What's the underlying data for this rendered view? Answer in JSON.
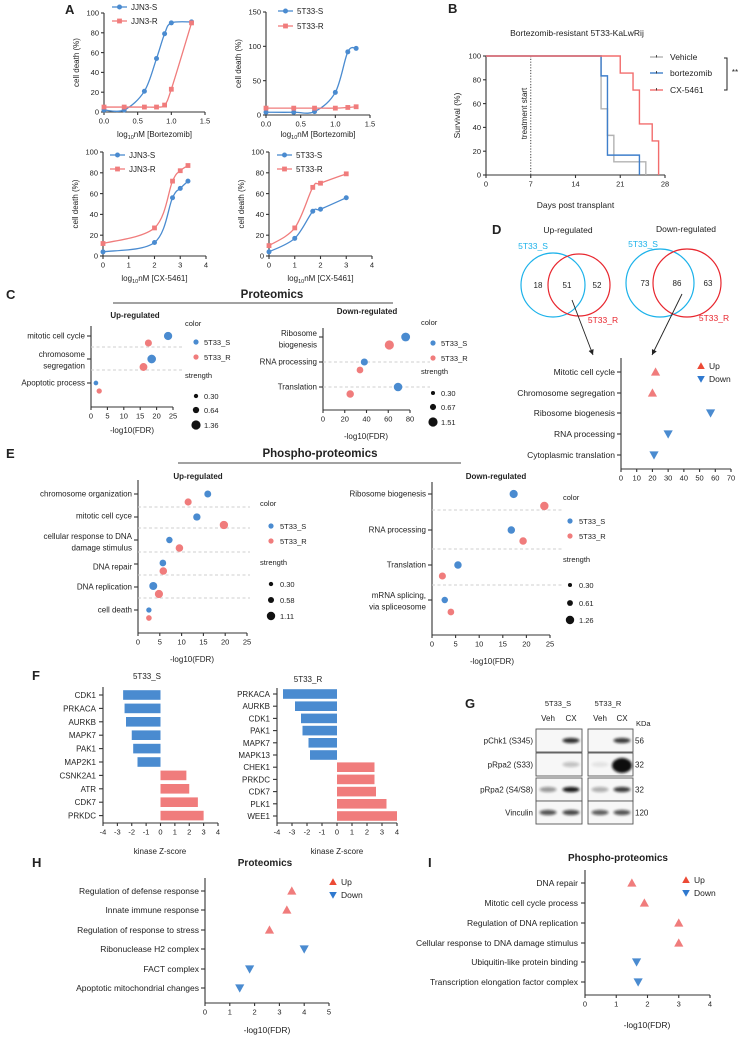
{
  "figure": {
    "panel_letters": [
      "A",
      "B",
      "C",
      "D",
      "E",
      "F",
      "G",
      "H",
      "I"
    ],
    "section_titles": {
      "C": "Proteomics",
      "E": "Phospho-proteomics"
    }
  },
  "chart_data": [
    {
      "id": "A1",
      "panel": "A",
      "type": "line",
      "xlabel": {
        "pre": "log",
        "sub": "10",
        "post": "nM [Bortezomib]"
      },
      "ylabel": "cell death (%)",
      "xlim": [
        0,
        1.5
      ],
      "ylim": [
        0,
        100
      ],
      "xticks": [
        "0.0",
        "0.5",
        "1.0",
        "1.5"
      ],
      "yticks": [
        "0",
        "20",
        "40",
        "60",
        "80",
        "100"
      ],
      "legend": "top-left",
      "series": [
        {
          "name": "JJN3-S",
          "color": "#4a8bd0",
          "marker": "circle",
          "x": [
            0,
            0.3,
            0.6,
            0.78,
            0.9,
            1.0,
            1.3
          ],
          "y": [
            2,
            2,
            21,
            54,
            79,
            90,
            91
          ]
        },
        {
          "name": "JJN3-R",
          "color": "#f07c7c",
          "marker": "square",
          "x": [
            0,
            0.3,
            0.6,
            0.78,
            0.9,
            1.0,
            1.3
          ],
          "y": [
            5,
            5,
            5,
            5,
            7,
            23,
            90
          ]
        }
      ]
    },
    {
      "id": "A2",
      "panel": "A",
      "type": "line",
      "xlabel": {
        "pre": "log",
        "sub": "10",
        "post": "nM [Bortezomib]"
      },
      "ylabel": "cell death (%)",
      "xlim": [
        0,
        1.5
      ],
      "ylim": [
        0,
        150
      ],
      "xticks": [
        "0.0",
        "0.5",
        "1.0",
        "1.5"
      ],
      "yticks": [
        "0",
        "50",
        "100",
        "150"
      ],
      "legend": "top-left",
      "series": [
        {
          "name": "5T33-S",
          "color": "#4a8bd0",
          "marker": "circle",
          "x": [
            0,
            0.4,
            0.7,
            1.0,
            1.18,
            1.3
          ],
          "y": [
            4,
            4,
            5,
            33,
            92,
            97
          ]
        },
        {
          "name": "5T33-R",
          "color": "#f07c7c",
          "marker": "square",
          "x": [
            0,
            0.4,
            0.7,
            1.0,
            1.18,
            1.3
          ],
          "y": [
            10,
            10,
            10,
            10,
            11,
            12
          ]
        }
      ]
    },
    {
      "id": "A3",
      "panel": "A",
      "type": "line",
      "xlabel": {
        "pre": "log",
        "sub": "10",
        "post": "nM [CX-5461]"
      },
      "ylabel": "cell death (%)",
      "xlim": [
        0,
        4
      ],
      "ylim": [
        0,
        100
      ],
      "xticks": [
        "0",
        "1",
        "2",
        "3",
        "4"
      ],
      "yticks": [
        "0",
        "20",
        "40",
        "60",
        "80",
        "100"
      ],
      "legend": "top-left",
      "series": [
        {
          "name": "JJN3-S",
          "color": "#4a8bd0",
          "marker": "circle",
          "x": [
            0,
            2,
            2.7,
            3,
            3.3
          ],
          "y": [
            4,
            13,
            56,
            65,
            72
          ]
        },
        {
          "name": "JJN3-R",
          "color": "#f07c7c",
          "marker": "square",
          "x": [
            0,
            2,
            2.7,
            3,
            3.3
          ],
          "y": [
            12,
            27,
            72,
            82,
            87
          ]
        }
      ]
    },
    {
      "id": "A4",
      "panel": "A",
      "type": "line",
      "xlabel": {
        "pre": "log",
        "sub": "10",
        "post": "nM [CX-5461]"
      },
      "ylabel": "cell death (%)",
      "xlim": [
        0,
        4
      ],
      "ylim": [
        0,
        100
      ],
      "xticks": [
        "0",
        "1",
        "2",
        "3",
        "4"
      ],
      "yticks": [
        "0",
        "20",
        "40",
        "60",
        "80",
        "100"
      ],
      "legend": "top-left",
      "series": [
        {
          "name": "5T33-S",
          "color": "#4a8bd0",
          "marker": "circle",
          "x": [
            0,
            1,
            1.7,
            2,
            3
          ],
          "y": [
            4,
            17,
            43,
            45,
            56
          ]
        },
        {
          "name": "5T33-R",
          "color": "#f07c7c",
          "marker": "square",
          "x": [
            0,
            1,
            1.7,
            2,
            3
          ],
          "y": [
            10,
            27,
            66,
            70,
            79
          ]
        }
      ]
    },
    {
      "id": "B",
      "panel": "B",
      "type": "line",
      "title": "Bortezomib-resistant 5T33-KaLwRij",
      "xlabel": "Days post transplant",
      "ylabel": "Survival (%)",
      "xlim": [
        0,
        28
      ],
      "ylim": [
        0,
        100
      ],
      "xticks": [
        "0",
        "7",
        "14",
        "21",
        "28"
      ],
      "yticks": [
        "0",
        "20",
        "40",
        "60",
        "80",
        "100"
      ],
      "annotation": "treatment start",
      "annotation_x": 7,
      "significance": "**",
      "legend": "top-right",
      "series": [
        {
          "name": "Vehicle",
          "color": "#b3b3b3",
          "steps": [
            [
              0,
              100
            ],
            [
              18,
              55.6
            ],
            [
              19,
              33.3
            ],
            [
              20,
              11.1
            ],
            [
              25,
              0
            ]
          ]
        },
        {
          "name": "bortezomib",
          "color": "#3f7fcb",
          "steps": [
            [
              0,
              100
            ],
            [
              18,
              83.3
            ],
            [
              19,
              16.7
            ],
            [
              24,
              0
            ]
          ]
        },
        {
          "name": "CX-5461",
          "color": "#f26d6d",
          "steps": [
            [
              0,
              100
            ],
            [
              21,
              85.7
            ],
            [
              23,
              71.4
            ],
            [
              24,
              42.9
            ],
            [
              26,
              28.6
            ],
            [
              27,
              0
            ]
          ]
        }
      ]
    },
    {
      "id": "C-up",
      "panel": "C",
      "type": "scatter",
      "title": "Up-regulated",
      "xlabel": "-log10(FDR)",
      "xlim": [
        0,
        25
      ],
      "xticks": [
        "0",
        "5",
        "10",
        "15",
        "20",
        "25"
      ],
      "categories": [
        [
          "mitotic cell cycle"
        ],
        [
          "chromosome",
          "segregation"
        ],
        [
          "Apoptotic process"
        ]
      ],
      "series": [
        {
          "name": "5T33_S",
          "color": "#4a8bd0",
          "values": [
            23.5,
            18.5,
            1.5
          ],
          "strength": [
            1.1,
            1.2,
            0.35
          ]
        },
        {
          "name": "5T33_R",
          "color": "#f07c7c",
          "values": [
            17.5,
            16,
            2.5
          ],
          "strength": [
            0.8,
            1.0,
            0.45
          ]
        }
      ],
      "legend_titles": [
        "color",
        "strength"
      ],
      "strength_legend": [
        "0.30",
        "0.64",
        "1.36"
      ]
    },
    {
      "id": "C-down",
      "panel": "C",
      "type": "scatter",
      "title": "Down-regulated",
      "xlabel": "-log10(FDR)",
      "xlim": [
        0,
        80
      ],
      "xticks": [
        "0",
        "20",
        "40",
        "60",
        "80"
      ],
      "categories": [
        [
          "Ribosome",
          "biogenesis"
        ],
        [
          "RNA processing"
        ],
        [
          "Translation"
        ]
      ],
      "series": [
        {
          "name": "5T33_S",
          "color": "#4a8bd0",
          "values": [
            76,
            38,
            69
          ],
          "strength": [
            1.4,
            0.9,
            1.3
          ]
        },
        {
          "name": "5T33_R",
          "color": "#f07c7c",
          "values": [
            61,
            34,
            25
          ],
          "strength": [
            1.5,
            0.8,
            1.0
          ]
        }
      ],
      "legend_titles": [
        "color",
        "strength"
      ],
      "strength_legend": [
        "0.30",
        "0.67",
        "1.51"
      ]
    },
    {
      "id": "D-venn",
      "panel": "D",
      "type": "venn",
      "diagrams": [
        {
          "title": "Up-regulated",
          "set_labels": [
            "5T33_S",
            "5T33_R"
          ],
          "counts": [
            "18",
            "51",
            "52"
          ]
        },
        {
          "title": "Down-regulated",
          "set_labels": [
            "5T33_S",
            "5T33_R"
          ],
          "counts": [
            "73",
            "86",
            "63"
          ]
        }
      ],
      "colors": {
        "5T33_S": "#1cb2ea",
        "5T33_R": "#e8262e"
      }
    },
    {
      "id": "D-dot",
      "panel": "D",
      "type": "scatter",
      "xlim": [
        0,
        70
      ],
      "xticks": [
        "0",
        "10",
        "20",
        "30",
        "40",
        "50",
        "60",
        "70"
      ],
      "categories": [
        "Mitotic cell cycle",
        "Chromosome segregation",
        "Ribosome biogenesis",
        "RNA processing",
        "Cytoplasmic translation"
      ],
      "values": [
        22,
        20,
        57,
        30,
        21
      ],
      "direction": [
        "Up",
        "Up",
        "Down",
        "Down",
        "Down"
      ],
      "legend": [
        "Up",
        "Down"
      ],
      "colors": {
        "Up": "#f07c7c",
        "Down": "#4a8bd0"
      }
    },
    {
      "id": "E-up",
      "panel": "E",
      "type": "scatter",
      "title": "Up-regulated",
      "xlabel": "-log10(FDR)",
      "xlim": [
        0,
        25
      ],
      "xticks": [
        "0",
        "5",
        "10",
        "15",
        "20",
        "25"
      ],
      "categories": [
        [
          "chromosome organization"
        ],
        [
          "mitotic cell cyce"
        ],
        [
          "cellular response to DNA",
          "damage stimulus"
        ],
        [
          "DNA repair"
        ],
        [
          "DNA replication"
        ],
        [
          "cell death"
        ]
      ],
      "series": [
        {
          "name": "5T33_S",
          "color": "#4a8bd0",
          "values": [
            16,
            13.5,
            7.2,
            5.7,
            3.5,
            2.5
          ],
          "strength": [
            0.75,
            0.85,
            0.65,
            0.7,
            1.0,
            0.45
          ]
        },
        {
          "name": "5T33_R",
          "color": "#f07c7c",
          "values": [
            11.5,
            19.7,
            9.5,
            5.8,
            4.8,
            2.5
          ],
          "strength": [
            0.8,
            1.1,
            0.9,
            0.9,
            1.05,
            0.5
          ]
        }
      ],
      "legend_titles": [
        "color",
        "strength"
      ],
      "strength_legend": [
        "0.30",
        "0.58",
        "1.11"
      ]
    },
    {
      "id": "E-down",
      "panel": "E",
      "type": "scatter",
      "title": "Down-regulated",
      "xlabel": "-log10(FDR)",
      "xlim": [
        0,
        25
      ],
      "xticks": [
        "0",
        "5",
        "10",
        "15",
        "20",
        "25"
      ],
      "categories": [
        [
          "Ribosome biogenesis"
        ],
        [
          "RNA processing"
        ],
        [
          "Translation"
        ],
        [
          "mRNA splicing,",
          "via spliceosome"
        ]
      ],
      "series": [
        {
          "name": "5T33_S",
          "color": "#4a8bd0",
          "values": [
            17.3,
            16.8,
            5.5,
            2.7
          ],
          "strength": [
            1.2,
            1.0,
            1.0,
            0.75
          ]
        },
        {
          "name": "5T33_R",
          "color": "#f07c7c",
          "values": [
            23.8,
            19.3,
            2.2,
            4.0
          ],
          "strength": [
            1.26,
            1.0,
            0.9,
            0.8
          ]
        }
      ],
      "legend_titles": [
        "color",
        "strength"
      ],
      "strength_legend": [
        "0.30",
        "0.61",
        "1.26"
      ]
    },
    {
      "id": "F-S",
      "panel": "F",
      "type": "bar",
      "title": "5T33_S",
      "xlabel": "kinase Z-score",
      "xlim": [
        -4,
        4
      ],
      "xticks": [
        "-4",
        "-3",
        "-2",
        "-1",
        "0",
        "1",
        "2",
        "3",
        "4"
      ],
      "categories": [
        "CDK1",
        "PRKACA",
        "AURKB",
        "MAPK7",
        "PAK1",
        "MAP2K1",
        "CSNK2A1",
        "ATR",
        "CDK7",
        "PRKDC"
      ],
      "values": [
        -2.6,
        -2.5,
        -2.4,
        -2.0,
        -1.9,
        -1.6,
        1.8,
        2.0,
        2.6,
        3.0
      ],
      "colors": {
        "negative": "#4a8bd0",
        "positive": "#f07c7c"
      }
    },
    {
      "id": "F-R",
      "panel": "F",
      "type": "bar",
      "title": "5T33_R",
      "xlabel": "kinase Z-score",
      "xlim": [
        -4,
        4
      ],
      "xticks": [
        "-4",
        "-3",
        "-2",
        "-1",
        "0",
        "1",
        "2",
        "3",
        "4"
      ],
      "categories": [
        "PRKACA",
        "AURKB",
        "CDK1",
        "PAK1",
        "MAPK7",
        "MAPK13",
        "CHEK1",
        "PRKDC",
        "CDK7",
        "PLK1",
        "WEE1"
      ],
      "values": [
        -3.6,
        -2.8,
        -2.4,
        -2.3,
        -1.9,
        -1.8,
        2.5,
        2.5,
        2.6,
        3.3,
        4.0
      ],
      "colors": {
        "negative": "#4a8bd0",
        "positive": "#f07c7c"
      }
    },
    {
      "id": "H",
      "panel": "H",
      "type": "scatter",
      "title": "Proteomics",
      "xlabel": "-log10(FDR)",
      "xlim": [
        0,
        5
      ],
      "xticks": [
        "0",
        "1",
        "2",
        "3",
        "4",
        "5"
      ],
      "categories": [
        "Regulation of defense response",
        "Innate immune response",
        "Regulation of response to stress",
        "Ribonuclease H2 complex",
        "FACT complex",
        "Apoptotic mitochondrial changes"
      ],
      "values": [
        3.5,
        3.3,
        2.6,
        4.0,
        1.8,
        1.4
      ],
      "direction": [
        "Up",
        "Up",
        "Up",
        "Down",
        "Down",
        "Down"
      ],
      "legend": [
        "Up",
        "Down"
      ],
      "colors": {
        "Up": "#f07c7c",
        "Down": "#4a8bd0"
      }
    },
    {
      "id": "I",
      "panel": "I",
      "type": "scatter",
      "title": "Phospho-proteomics",
      "xlabel": "-log10(FDR)",
      "xlim": [
        0,
        4
      ],
      "xticks": [
        "0",
        "1",
        "2",
        "3",
        "4"
      ],
      "categories": [
        "DNA repair",
        "Mitotic cell cycle process",
        "Regulation of DNA replication",
        "Cellular response to DNA damage stimulus",
        "Ubiquitin-like protein binding",
        "Transcription elongation factor complex"
      ],
      "values": [
        1.5,
        1.9,
        3.0,
        3.0,
        1.65,
        1.7
      ],
      "direction": [
        "Up",
        "Up",
        "Up",
        "Up",
        "Down",
        "Down"
      ],
      "legend": [
        "Up",
        "Down"
      ],
      "colors": {
        "Up": "#f07c7c",
        "Down": "#4a8bd0"
      }
    }
  ],
  "western_blot": {
    "groups": [
      "5T33_S",
      "5T33_R"
    ],
    "lanes": [
      "Veh",
      "CX",
      "Veh",
      "CX"
    ],
    "unit": "KDa",
    "rows": [
      {
        "label": "pChk1 (S345)",
        "kda": "56",
        "intensity": [
          0,
          0.85,
          0,
          0.8
        ]
      },
      {
        "label": "pRpa2 (S33)",
        "kda": "32",
        "intensity": [
          0,
          0.22,
          0.08,
          1
        ]
      },
      {
        "label": "pRpa2 (S4/S8)",
        "kda": "32",
        "intensity": [
          0.4,
          0.95,
          0.3,
          0.8
        ]
      },
      {
        "label": "Vinculin",
        "kda": "120",
        "intensity": [
          0.7,
          0.75,
          0.65,
          0.7
        ]
      }
    ]
  }
}
